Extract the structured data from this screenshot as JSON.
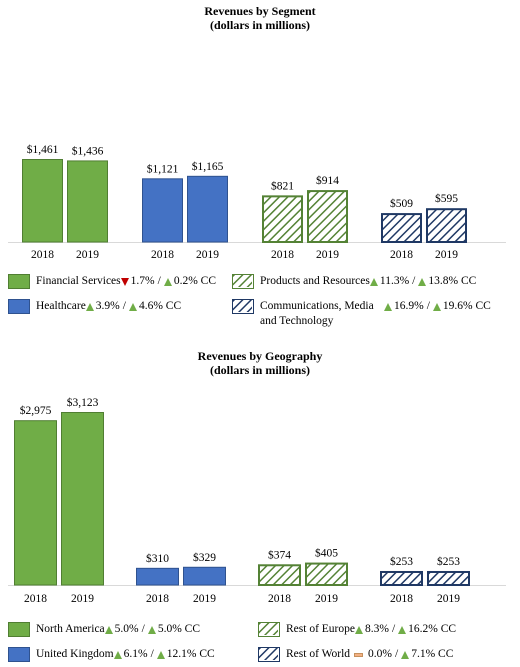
{
  "colors": {
    "financial_services": "#70ad47",
    "healthcare": "#4472c4",
    "products_resources": "#548235",
    "communications": "#1f3864",
    "up_arrow": "#70ad47",
    "down_arrow": "#c00000",
    "flat_marker": "#f4b183"
  },
  "chart_data": [
    {
      "type": "bar",
      "title": "Revenues by Segment",
      "subtitle": "(dollars in millions)",
      "groups": [
        {
          "name": "Financial Services",
          "style": "solid-green",
          "categories": [
            "2018",
            "2019"
          ],
          "values": [
            1461,
            1436
          ],
          "labels": [
            "$1,461",
            "$1,436"
          ],
          "changes": [
            {
              "dir": "down",
              "text": "1.7%"
            },
            {
              "dir": "up",
              "text": "0.2% CC"
            }
          ]
        },
        {
          "name": "Healthcare",
          "style": "solid-blue",
          "categories": [
            "2018",
            "2019"
          ],
          "values": [
            1121,
            1165
          ],
          "labels": [
            "$1,121",
            "$1,165"
          ],
          "changes": [
            {
              "dir": "up",
              "text": "3.9%"
            },
            {
              "dir": "up",
              "text": "4.6% CC"
            }
          ]
        },
        {
          "name": "Products and Resources",
          "style": "hatch-green",
          "categories": [
            "2018",
            "2019"
          ],
          "values": [
            821,
            914
          ],
          "labels": [
            "$821",
            "$914"
          ],
          "changes": [
            {
              "dir": "up",
              "text": "11.3%"
            },
            {
              "dir": "up",
              "text": "13.8% CC"
            }
          ]
        },
        {
          "name": "Communications, Media and Technology",
          "style": "hatch-blue",
          "categories": [
            "2018",
            "2019"
          ],
          "values": [
            509,
            595
          ],
          "labels": [
            "$509",
            "$595"
          ],
          "changes": [
            {
              "dir": "up",
              "text": "16.9%"
            },
            {
              "dir": "up",
              "text": "19.6% CC"
            }
          ]
        }
      ]
    },
    {
      "type": "bar",
      "title": "Revenues by Geography",
      "subtitle": "(dollars in millions)",
      "groups": [
        {
          "name": "North America",
          "style": "solid-green",
          "categories": [
            "2018",
            "2019"
          ],
          "values": [
            2975,
            3123
          ],
          "labels": [
            "$2,975",
            "$3,123"
          ],
          "changes": [
            {
              "dir": "up",
              "text": "5.0%"
            },
            {
              "dir": "up",
              "text": "5.0% CC"
            }
          ]
        },
        {
          "name": "United Kingdom",
          "style": "solid-blue",
          "categories": [
            "2018",
            "2019"
          ],
          "values": [
            310,
            329
          ],
          "labels": [
            "$310",
            "$329"
          ],
          "changes": [
            {
              "dir": "up",
              "text": "6.1%"
            },
            {
              "dir": "up",
              "text": "12.1% CC"
            }
          ]
        },
        {
          "name": "Rest of Europe",
          "style": "hatch-green",
          "categories": [
            "2018",
            "2019"
          ],
          "values": [
            374,
            405
          ],
          "labels": [
            "$374",
            "$405"
          ],
          "changes": [
            {
              "dir": "up",
              "text": "8.3%"
            },
            {
              "dir": "up",
              "text": "16.2% CC"
            }
          ]
        },
        {
          "name": "Rest of World",
          "style": "hatch-blue",
          "categories": [
            "2018",
            "2019"
          ],
          "values": [
            253,
            253
          ],
          "labels": [
            "$253",
            "$253"
          ],
          "changes": [
            {
              "dir": "flat",
              "text": "0.0%"
            },
            {
              "dir": "up",
              "text": "7.1% CC"
            }
          ]
        }
      ]
    }
  ]
}
